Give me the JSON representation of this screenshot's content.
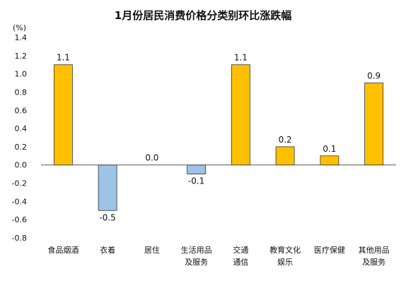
{
  "chart_data": {
    "type": "bar",
    "title": "1月份居民消费价格分类别环比涨跌幅",
    "unit": "(%)",
    "ylim": [
      -0.8,
      1.4
    ],
    "yticks": [
      "1.4",
      "1.2",
      "1.0",
      "0.8",
      "0.6",
      "0.4",
      "0.2",
      "0.0",
      "-0.2",
      "-0.4",
      "-0.6",
      "-0.8"
    ],
    "categories": [
      [
        "食品烟酒"
      ],
      [
        "衣着"
      ],
      [
        "居住"
      ],
      [
        "生活用品",
        "及服务"
      ],
      [
        "交通",
        "通信"
      ],
      [
        "教育文化",
        "娱乐"
      ],
      [
        "医疗保健"
      ],
      [
        "其他用品",
        "及服务"
      ]
    ],
    "values": [
      1.1,
      -0.5,
      0.0,
      -0.1,
      1.1,
      0.2,
      0.1,
      0.9
    ],
    "value_labels": [
      "1.1",
      "-0.5",
      "0.0",
      "-0.1",
      "1.1",
      "0.2",
      "0.1",
      "0.9"
    ],
    "colors": {
      "positive": "#FFC000",
      "negative": "#9DC3E6",
      "bar_stroke": "#333333",
      "axis": "#555555"
    }
  }
}
